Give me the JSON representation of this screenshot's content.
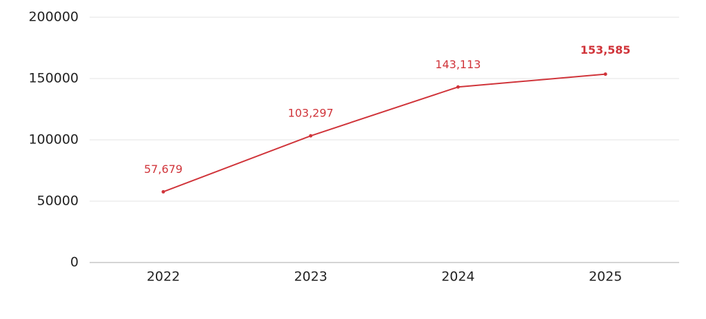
{
  "chart_data": {
    "type": "line",
    "categories": [
      "2022",
      "2023",
      "2024",
      "2025"
    ],
    "values": [
      57679,
      103297,
      143113,
      153585
    ],
    "value_labels": [
      "57,679",
      "103,297",
      "143,113",
      "153,585"
    ],
    "color": "#d0343a",
    "ylim": [
      0,
      200000
    ],
    "yticks": [
      0,
      50000,
      100000,
      150000,
      200000
    ],
    "grid": true
  }
}
